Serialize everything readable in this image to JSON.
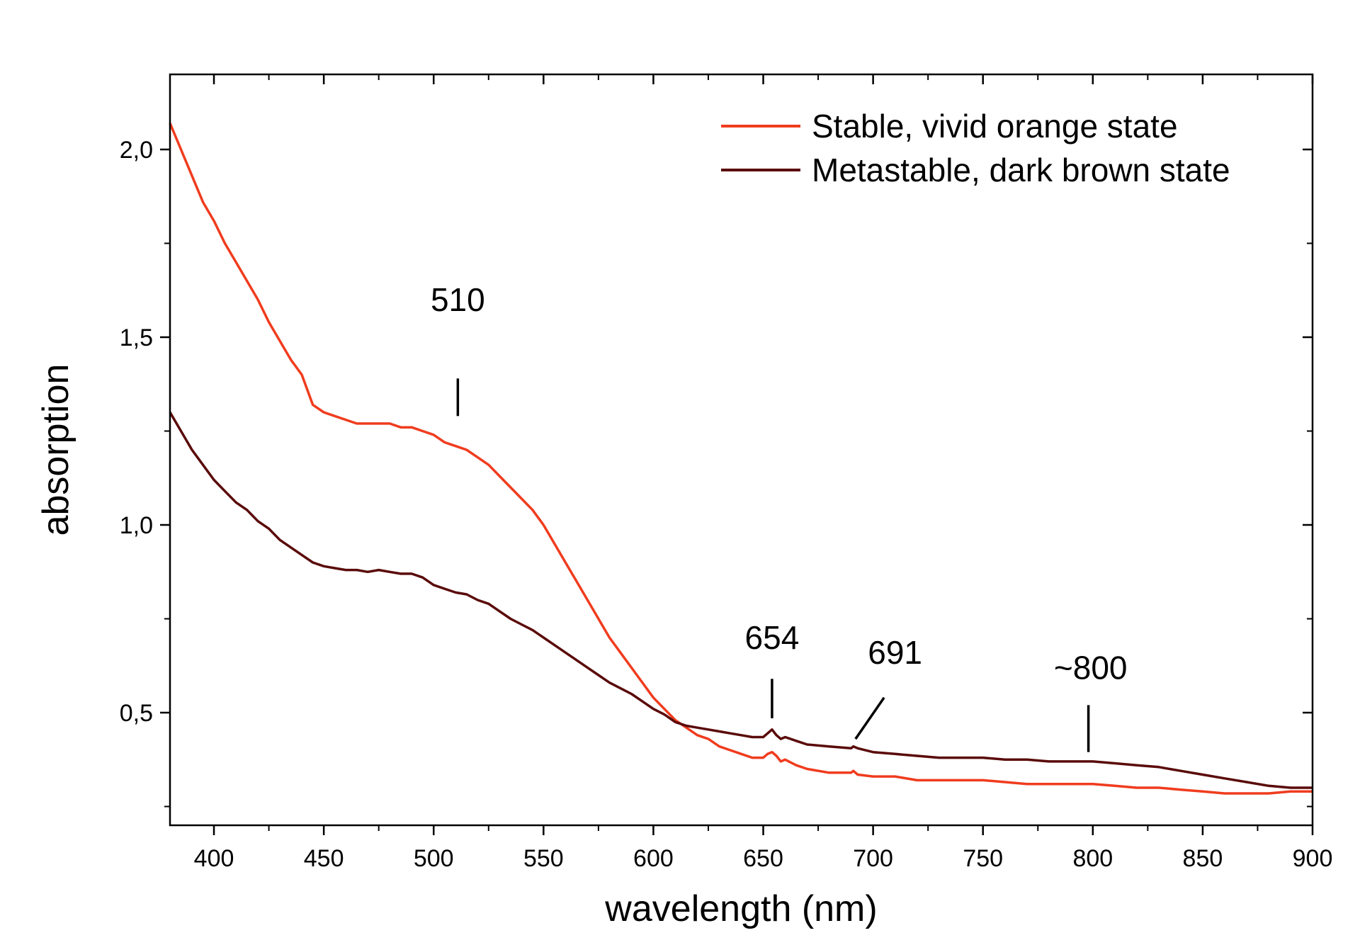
{
  "chart_data": {
    "type": "line",
    "title": "",
    "xlabel": "wavelength (nm)",
    "ylabel": "absorption",
    "xlim": [
      380,
      900
    ],
    "ylim": [
      0.2,
      2.2
    ],
    "x_ticks": [
      400,
      450,
      500,
      550,
      600,
      650,
      700,
      750,
      800,
      850,
      900
    ],
    "x_tick_labels": [
      "400",
      "450",
      "500",
      "550",
      "600",
      "650",
      "700",
      "750",
      "800",
      "850",
      "900"
    ],
    "y_ticks": [
      0.5,
      1.0,
      1.5,
      2.0
    ],
    "y_tick_labels": [
      "0,5",
      "1,0",
      "1,5",
      "2,0"
    ],
    "grid": false,
    "legend_position": "top-right",
    "series": [
      {
        "name": "Stable, vivid orange state",
        "color": "#f03c1e",
        "points": [
          [
            380,
            2.07
          ],
          [
            385,
            2.0
          ],
          [
            390,
            1.93
          ],
          [
            395,
            1.86
          ],
          [
            400,
            1.81
          ],
          [
            405,
            1.75
          ],
          [
            410,
            1.7
          ],
          [
            415,
            1.65
          ],
          [
            420,
            1.6
          ],
          [
            425,
            1.54
          ],
          [
            430,
            1.49
          ],
          [
            435,
            1.44
          ],
          [
            440,
            1.4
          ],
          [
            445,
            1.32
          ],
          [
            450,
            1.3
          ],
          [
            455,
            1.29
          ],
          [
            460,
            1.28
          ],
          [
            465,
            1.27
          ],
          [
            470,
            1.27
          ],
          [
            475,
            1.27
          ],
          [
            480,
            1.27
          ],
          [
            485,
            1.26
          ],
          [
            490,
            1.26
          ],
          [
            495,
            1.25
          ],
          [
            500,
            1.24
          ],
          [
            505,
            1.22
          ],
          [
            510,
            1.21
          ],
          [
            515,
            1.2
          ],
          [
            520,
            1.18
          ],
          [
            525,
            1.16
          ],
          [
            530,
            1.13
          ],
          [
            535,
            1.1
          ],
          [
            540,
            1.07
          ],
          [
            545,
            1.04
          ],
          [
            550,
            1.0
          ],
          [
            555,
            0.95
          ],
          [
            560,
            0.9
          ],
          [
            565,
            0.85
          ],
          [
            570,
            0.8
          ],
          [
            575,
            0.75
          ],
          [
            580,
            0.7
          ],
          [
            585,
            0.66
          ],
          [
            590,
            0.62
          ],
          [
            595,
            0.58
          ],
          [
            600,
            0.54
          ],
          [
            605,
            0.51
          ],
          [
            610,
            0.48
          ],
          [
            615,
            0.46
          ],
          [
            620,
            0.44
          ],
          [
            625,
            0.43
          ],
          [
            630,
            0.41
          ],
          [
            635,
            0.4
          ],
          [
            640,
            0.39
          ],
          [
            645,
            0.38
          ],
          [
            650,
            0.38
          ],
          [
            652,
            0.39
          ],
          [
            654,
            0.395
          ],
          [
            656,
            0.385
          ],
          [
            658,
            0.37
          ],
          [
            660,
            0.375
          ],
          [
            665,
            0.36
          ],
          [
            670,
            0.35
          ],
          [
            680,
            0.34
          ],
          [
            690,
            0.34
          ],
          [
            691,
            0.345
          ],
          [
            693,
            0.335
          ],
          [
            700,
            0.33
          ],
          [
            710,
            0.33
          ],
          [
            720,
            0.32
          ],
          [
            730,
            0.32
          ],
          [
            740,
            0.32
          ],
          [
            750,
            0.32
          ],
          [
            760,
            0.315
          ],
          [
            770,
            0.31
          ],
          [
            780,
            0.31
          ],
          [
            790,
            0.31
          ],
          [
            800,
            0.31
          ],
          [
            810,
            0.305
          ],
          [
            820,
            0.3
          ],
          [
            830,
            0.3
          ],
          [
            840,
            0.295
          ],
          [
            850,
            0.29
          ],
          [
            860,
            0.285
          ],
          [
            870,
            0.285
          ],
          [
            880,
            0.285
          ],
          [
            890,
            0.29
          ],
          [
            900,
            0.29
          ]
        ]
      },
      {
        "name": "Metastable, dark brown state",
        "color": "#5a0a0a",
        "points": [
          [
            380,
            1.3
          ],
          [
            385,
            1.25
          ],
          [
            390,
            1.2
          ],
          [
            395,
            1.16
          ],
          [
            400,
            1.12
          ],
          [
            405,
            1.09
          ],
          [
            410,
            1.06
          ],
          [
            415,
            1.04
          ],
          [
            420,
            1.01
          ],
          [
            425,
            0.99
          ],
          [
            430,
            0.96
          ],
          [
            435,
            0.94
          ],
          [
            440,
            0.92
          ],
          [
            445,
            0.9
          ],
          [
            450,
            0.89
          ],
          [
            455,
            0.885
          ],
          [
            460,
            0.88
          ],
          [
            465,
            0.88
          ],
          [
            470,
            0.875
          ],
          [
            475,
            0.88
          ],
          [
            480,
            0.875
          ],
          [
            485,
            0.87
          ],
          [
            490,
            0.87
          ],
          [
            495,
            0.86
          ],
          [
            500,
            0.84
          ],
          [
            505,
            0.83
          ],
          [
            510,
            0.82
          ],
          [
            515,
            0.815
          ],
          [
            520,
            0.8
          ],
          [
            525,
            0.79
          ],
          [
            530,
            0.77
          ],
          [
            535,
            0.75
          ],
          [
            540,
            0.735
          ],
          [
            545,
            0.72
          ],
          [
            550,
            0.7
          ],
          [
            555,
            0.68
          ],
          [
            560,
            0.66
          ],
          [
            565,
            0.64
          ],
          [
            570,
            0.62
          ],
          [
            575,
            0.6
          ],
          [
            580,
            0.58
          ],
          [
            585,
            0.565
          ],
          [
            590,
            0.55
          ],
          [
            595,
            0.53
          ],
          [
            600,
            0.51
          ],
          [
            605,
            0.495
          ],
          [
            610,
            0.475
          ],
          [
            615,
            0.465
          ],
          [
            620,
            0.46
          ],
          [
            625,
            0.455
          ],
          [
            630,
            0.45
          ],
          [
            635,
            0.445
          ],
          [
            640,
            0.44
          ],
          [
            645,
            0.435
          ],
          [
            650,
            0.435
          ],
          [
            652,
            0.445
          ],
          [
            654,
            0.455
          ],
          [
            656,
            0.44
          ],
          [
            658,
            0.43
          ],
          [
            660,
            0.435
          ],
          [
            665,
            0.425
          ],
          [
            670,
            0.415
          ],
          [
            680,
            0.41
          ],
          [
            690,
            0.405
          ],
          [
            691,
            0.41
          ],
          [
            693,
            0.405
          ],
          [
            700,
            0.395
          ],
          [
            710,
            0.39
          ],
          [
            720,
            0.385
          ],
          [
            730,
            0.38
          ],
          [
            740,
            0.38
          ],
          [
            750,
            0.38
          ],
          [
            760,
            0.375
          ],
          [
            770,
            0.375
          ],
          [
            780,
            0.37
          ],
          [
            790,
            0.37
          ],
          [
            800,
            0.37
          ],
          [
            810,
            0.365
          ],
          [
            820,
            0.36
          ],
          [
            830,
            0.355
          ],
          [
            840,
            0.345
          ],
          [
            850,
            0.335
          ],
          [
            860,
            0.325
          ],
          [
            870,
            0.315
          ],
          [
            880,
            0.305
          ],
          [
            890,
            0.3
          ],
          [
            900,
            0.3
          ]
        ]
      }
    ],
    "annotations": [
      {
        "text": "510",
        "label_x": 511,
        "label_y": 1.57,
        "line": [
          [
            511,
            1.39
          ],
          [
            511,
            1.29
          ]
        ]
      },
      {
        "text": "654",
        "label_x": 654,
        "label_y": 0.67,
        "line": [
          [
            654,
            0.59
          ],
          [
            654,
            0.485
          ]
        ]
      },
      {
        "text": "691",
        "label_x": 710,
        "label_y": 0.63,
        "line": [
          [
            705,
            0.54
          ],
          [
            692,
            0.43
          ]
        ]
      },
      {
        "text": "~800",
        "label_x": 799,
        "label_y": 0.59,
        "line": [
          [
            798,
            0.52
          ],
          [
            798,
            0.395
          ]
        ]
      }
    ]
  }
}
